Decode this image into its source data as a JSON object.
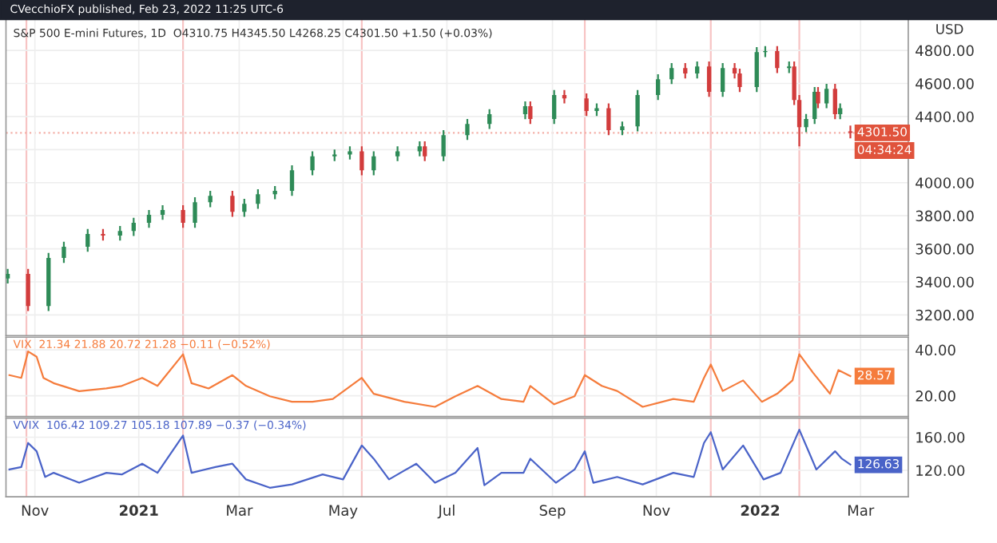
{
  "chart_data": [
    {
      "type": "candlestick",
      "title": "S&P 500 E-mini Futures, 1D  O4310.75 H4345.50 L4268.25 C4301.50 +1.50 (+0.03%)",
      "subtitle": "CVecchioFX published, Feb 23, 2022 11:25 UTC-6",
      "ylabel": "USD",
      "x": [
        "2020-10-16",
        "2020-10-28",
        "2020-11-09",
        "2020-11-18",
        "2020-12-02",
        "2020-12-11",
        "2020-12-21",
        "2020-12-29",
        "2021-01-07",
        "2021-01-15",
        "2021-01-27",
        "2021-02-03",
        "2021-02-12",
        "2021-02-25",
        "2021-03-04",
        "2021-03-12",
        "2021-03-22",
        "2021-04-01",
        "2021-04-13",
        "2021-04-26",
        "2021-05-05",
        "2021-05-12",
        "2021-05-19",
        "2021-06-02",
        "2021-06-15",
        "2021-06-18",
        "2021-06-29",
        "2021-07-13",
        "2021-07-26",
        "2021-08-16",
        "2021-08-19",
        "2021-09-02",
        "2021-09-08",
        "2021-09-21",
        "2021-09-27",
        "2021-10-04",
        "2021-10-12",
        "2021-10-21",
        "2021-11-02",
        "2021-11-10",
        "2021-11-18",
        "2021-11-25",
        "2021-12-02",
        "2021-12-10",
        "2021-12-17",
        "2021-12-20",
        "2021-12-30",
        "2022-01-04",
        "2022-01-11",
        "2022-01-18",
        "2022-01-21",
        "2022-01-24",
        "2022-01-28",
        "2022-02-02",
        "2022-02-04",
        "2022-02-09",
        "2022-02-14",
        "2022-02-17",
        "2022-02-23"
      ],
      "ohlc": [
        [
          3420,
          3478,
          3390,
          3448
        ],
        [
          3448,
          3478,
          3224,
          3254
        ],
        [
          3254,
          3575,
          3224,
          3545
        ],
        [
          3545,
          3642,
          3515,
          3612
        ],
        [
          3612,
          3720,
          3582,
          3690
        ],
        [
          3690,
          3720,
          3650,
          3680
        ],
        [
          3680,
          3738,
          3650,
          3708
        ],
        [
          3708,
          3787,
          3678,
          3757
        ],
        [
          3757,
          3835,
          3727,
          3805
        ],
        [
          3805,
          3864,
          3775,
          3834
        ],
        [
          3834,
          3864,
          3727,
          3757
        ],
        [
          3757,
          3912,
          3727,
          3882
        ],
        [
          3882,
          3950,
          3852,
          3920
        ],
        [
          3920,
          3950,
          3794,
          3824
        ],
        [
          3824,
          3902,
          3794,
          3872
        ],
        [
          3872,
          3960,
          3842,
          3930
        ],
        [
          3930,
          3980,
          3900,
          3950
        ],
        [
          3950,
          4105,
          3920,
          4075
        ],
        [
          4075,
          4190,
          4045,
          4160
        ],
        [
          4160,
          4200,
          4130,
          4170
        ],
        [
          4170,
          4220,
          4140,
          4190
        ],
        [
          4190,
          4220,
          4045,
          4075
        ],
        [
          4075,
          4190,
          4045,
          4160
        ],
        [
          4160,
          4220,
          4130,
          4190
        ],
        [
          4190,
          4250,
          4160,
          4220
        ],
        [
          4220,
          4250,
          4130,
          4160
        ],
        [
          4160,
          4318,
          4130,
          4288
        ],
        [
          4288,
          4385,
          4258,
          4355
        ],
        [
          4355,
          4444,
          4325,
          4414
        ],
        [
          4414,
          4492,
          4384,
          4462
        ],
        [
          4462,
          4492,
          4355,
          4385
        ],
        [
          4385,
          4560,
          4355,
          4530
        ],
        [
          4530,
          4560,
          4480,
          4510
        ],
        [
          4510,
          4540,
          4403,
          4433
        ],
        [
          4433,
          4480,
          4403,
          4450
        ],
        [
          4450,
          4480,
          4287,
          4317
        ],
        [
          4317,
          4370,
          4287,
          4340
        ],
        [
          4340,
          4560,
          4310,
          4530
        ],
        [
          4530,
          4656,
          4500,
          4626
        ],
        [
          4626,
          4723,
          4596,
          4693
        ],
        [
          4693,
          4723,
          4630,
          4660
        ],
        [
          4660,
          4733,
          4630,
          4703
        ],
        [
          4703,
          4733,
          4519,
          4549
        ],
        [
          4549,
          4723,
          4519,
          4693
        ],
        [
          4693,
          4723,
          4630,
          4660
        ],
        [
          4660,
          4690,
          4548,
          4578
        ],
        [
          4578,
          4820,
          4548,
          4790
        ],
        [
          4790,
          4826,
          4760,
          4796
        ],
        [
          4796,
          4826,
          4663,
          4693
        ],
        [
          4693,
          4733,
          4663,
          4703
        ],
        [
          4703,
          4733,
          4470,
          4500
        ],
        [
          4500,
          4530,
          4220,
          4336
        ],
        [
          4336,
          4415,
          4306,
          4385
        ],
        [
          4385,
          4579,
          4355,
          4549
        ],
        [
          4549,
          4579,
          4450,
          4480
        ],
        [
          4480,
          4598,
          4450,
          4568
        ],
        [
          4568,
          4598,
          4384,
          4414
        ],
        [
          4414,
          4480,
          4384,
          4450
        ],
        [
          4310.75,
          4345.5,
          4268.25,
          4301.5
        ]
      ],
      "colors": [
        "#2e8b57",
        "#d23c3c",
        "#2e8b57",
        "#2e8b57",
        "#2e8b57",
        "#d23c3c",
        "#2e8b57",
        "#2e8b57",
        "#2e8b57",
        "#2e8b57",
        "#d23c3c",
        "#2e8b57",
        "#2e8b57",
        "#d23c3c",
        "#2e8b57",
        "#2e8b57",
        "#2e8b57",
        "#2e8b57",
        "#2e8b57",
        "#2e8b57",
        "#2e8b57",
        "#d23c3c",
        "#2e8b57",
        "#2e8b57",
        "#2e8b57",
        "#d23c3c",
        "#2e8b57",
        "#2e8b57",
        "#2e8b57",
        "#2e8b57",
        "#d23c3c",
        "#2e8b57",
        "#d23c3c",
        "#d23c3c",
        "#2e8b57",
        "#d23c3c",
        "#2e8b57",
        "#2e8b57",
        "#2e8b57",
        "#2e8b57",
        "#d23c3c",
        "#2e8b57",
        "#d23c3c",
        "#2e8b57",
        "#d23c3c",
        "#d23c3c",
        "#2e8b57",
        "#2e8b57",
        "#d23c3c",
        "#2e8b57",
        "#d23c3c",
        "#d23c3c",
        "#2e8b57",
        "#2e8b57",
        "#d23c3c",
        "#2e8b57",
        "#d23c3c",
        "#2e8b57",
        "#d23c3c"
      ],
      "xlim": [
        "2020-10-15",
        "2022-03-29"
      ],
      "ylim": [
        3075,
        4990
      ],
      "yticks": [
        {
          "value": 3200,
          "label": "3200.00"
        },
        {
          "value": 3400,
          "label": "3400.00"
        },
        {
          "value": 3600,
          "label": "3600.00"
        },
        {
          "value": 3800,
          "label": "3800.00"
        },
        {
          "value": 4000,
          "label": "4000.00"
        },
        {
          "value": 4200,
          "label": null
        },
        {
          "value": 4400,
          "label": "4400.00"
        },
        {
          "value": 4600,
          "label": "4600.00"
        },
        {
          "value": 4800,
          "label": "4800.00"
        }
      ],
      "tick_labels": "y",
      "grid": true,
      "ref_lines": [
        {
          "axis": "x",
          "value": "2020-10-27",
          "color": "#f7c4c4"
        },
        {
          "axis": "x",
          "value": "2021-01-27",
          "color": "#f7c4c4"
        },
        {
          "axis": "x",
          "value": "2021-05-12",
          "color": "#f7c4c4"
        },
        {
          "axis": "x",
          "value": "2021-09-20",
          "color": "#f7c4c4"
        },
        {
          "axis": "x",
          "value": "2021-12-03",
          "color": "#f7c4c4"
        },
        {
          "axis": "x",
          "value": "2022-01-24",
          "color": "#f7c4c4"
        },
        {
          "axis": "y",
          "value": 4301.5,
          "color": "#f4b0a8",
          "line_style": "dotted"
        }
      ],
      "annotations": [
        {
          "text": "4301.50",
          "x": "2022-02-23",
          "y": 4301.5
        },
        "04:34:24"
      ]
    },
    {
      "type": "line",
      "title": "VIX  21.34 21.88 20.72 21.28 −0.11 (−0.52%)",
      "series": [
        {
          "color": "#f57c3c",
          "x": [
            "2020-10-17",
            "2020-10-24",
            "2020-10-28",
            "2020-11-02",
            "2020-11-06",
            "2020-11-12",
            "2020-11-27",
            "2020-12-13",
            "2020-12-22",
            "2021-01-03",
            "2021-01-12",
            "2021-01-27",
            "2021-02-01",
            "2021-02-11",
            "2021-02-25",
            "2021-03-05",
            "2021-03-19",
            "2021-04-01",
            "2021-04-13",
            "2021-04-25",
            "2021-05-12",
            "2021-05-19",
            "2021-06-06",
            "2021-06-24",
            "2021-07-06",
            "2021-07-19",
            "2021-08-02",
            "2021-08-15",
            "2021-08-19",
            "2021-09-02",
            "2021-09-14",
            "2021-09-20",
            "2021-09-30",
            "2021-10-09",
            "2021-10-24",
            "2021-11-11",
            "2021-11-23",
            "2021-11-29",
            "2021-12-03",
            "2021-12-10",
            "2021-12-22",
            "2022-01-02",
            "2022-01-11",
            "2022-01-20",
            "2022-01-24",
            "2022-02-01",
            "2022-02-11",
            "2022-02-16",
            "2022-02-23"
          ],
          "values": [
            29,
            27.8,
            39.3,
            37,
            27.8,
            25.5,
            22,
            23.2,
            24.3,
            27.8,
            24.3,
            38.1,
            25.5,
            23.2,
            29,
            24.3,
            19.8,
            17.4,
            17.4,
            18.6,
            27.8,
            20.9,
            17.4,
            15.2,
            19.8,
            24.3,
            18.6,
            17.4,
            24.3,
            16.3,
            19.8,
            29,
            24.3,
            22.1,
            15.2,
            18.6,
            17.4,
            27.8,
            33.6,
            22.1,
            26.7,
            17.4,
            20.9,
            26.7,
            38.1,
            30.1,
            20.9,
            31.2,
            28.6
          ]
        }
      ],
      "xlim": [
        "2020-10-15",
        "2022-03-29"
      ],
      "ylim": [
        11,
        45.5
      ],
      "yticks": [
        {
          "value": 20,
          "label": "20.00"
        },
        {
          "value": 40,
          "label": "40.00"
        }
      ],
      "tick_labels": "y",
      "grid": true,
      "ref_lines": [
        {
          "axis": "x",
          "value": "2020-10-27",
          "color": "#f7c4c4"
        },
        {
          "axis": "x",
          "value": "2021-01-27",
          "color": "#f7c4c4"
        },
        {
          "axis": "x",
          "value": "2021-05-12",
          "color": "#f7c4c4"
        },
        {
          "axis": "x",
          "value": "2021-09-20",
          "color": "#f7c4c4"
        },
        {
          "axis": "x",
          "value": "2021-12-03",
          "color": "#f7c4c4"
        },
        {
          "axis": "x",
          "value": "2022-01-24",
          "color": "#f7c4c4"
        }
      ],
      "annotations": [
        {
          "text": "28.57",
          "x": "2022-02-23",
          "y": 28.57
        }
      ]
    },
    {
      "type": "line",
      "title": "VVIX  106.42 109.27 105.18 107.89 −0.37 (−0.34%)",
      "series": [
        {
          "color": "#4a63c8",
          "x": [
            "2020-10-17",
            "2020-10-24",
            "2020-10-28",
            "2020-11-02",
            "2020-11-07",
            "2020-11-12",
            "2020-11-27",
            "2020-12-13",
            "2020-12-22",
            "2021-01-03",
            "2021-01-12",
            "2021-01-27",
            "2021-02-01",
            "2021-02-15",
            "2021-02-25",
            "2021-03-05",
            "2021-03-19",
            "2021-04-01",
            "2021-04-19",
            "2021-05-01",
            "2021-05-12",
            "2021-05-19",
            "2021-05-28",
            "2021-06-13",
            "2021-06-24",
            "2021-07-06",
            "2021-07-19",
            "2021-07-23",
            "2021-08-02",
            "2021-08-15",
            "2021-08-19",
            "2021-09-03",
            "2021-09-14",
            "2021-09-20",
            "2021-09-25",
            "2021-10-09",
            "2021-10-24",
            "2021-11-11",
            "2021-11-23",
            "2021-11-29",
            "2021-12-03",
            "2021-12-10",
            "2021-12-22",
            "2022-01-03",
            "2022-01-13",
            "2022-01-24",
            "2022-02-03",
            "2022-02-14",
            "2022-02-18",
            "2022-02-23"
          ],
          "values": [
            121,
            124,
            153,
            143,
            112,
            117,
            105,
            117,
            115,
            128,
            117,
            162,
            117,
            124,
            128,
            109,
            99,
            103,
            115,
            109,
            150,
            134,
            109,
            128,
            105,
            117,
            147,
            102,
            117,
            117,
            134,
            105,
            121,
            143,
            105,
            112,
            103,
            117,
            112,
            153,
            166,
            121,
            150,
            109,
            117,
            169,
            121,
            143,
            134,
            127
          ]
        }
      ],
      "xlim": [
        "2020-10-15",
        "2022-03-29"
      ],
      "ylim": [
        88,
        183
      ],
      "yticks": [
        {
          "value": 120,
          "label": "120.00"
        },
        {
          "value": 160,
          "label": "160.00"
        }
      ],
      "xticks": [
        {
          "value": "2020-11-01",
          "label": "Nov"
        },
        {
          "value": "2021-01-01",
          "label": "2021"
        },
        {
          "value": "2021-03-01",
          "label": "Mar"
        },
        {
          "value": "2021-05-01",
          "label": "May"
        },
        {
          "value": "2021-07-01",
          "label": "Jul"
        },
        {
          "value": "2021-09-01",
          "label": "Sep"
        },
        {
          "value": "2021-11-01",
          "label": "Nov"
        },
        {
          "value": "2022-01-01",
          "label": "2022"
        },
        {
          "value": "2022-03-01",
          "label": "Mar"
        }
      ],
      "grid": true,
      "ref_lines": [
        {
          "axis": "x",
          "value": "2020-10-27",
          "color": "#f7c4c4"
        },
        {
          "axis": "x",
          "value": "2021-01-27",
          "color": "#f7c4c4"
        },
        {
          "axis": "x",
          "value": "2021-05-12",
          "color": "#f7c4c4"
        },
        {
          "axis": "x",
          "value": "2021-09-20",
          "color": "#f7c4c4"
        },
        {
          "axis": "x",
          "value": "2021-12-03",
          "color": "#f7c4c4"
        },
        {
          "axis": "x",
          "value": "2022-01-24",
          "color": "#f7c4c4"
        }
      ],
      "annotations": [
        {
          "text": "126.63",
          "x": "2022-02-23",
          "y": 126.63
        }
      ]
    }
  ]
}
